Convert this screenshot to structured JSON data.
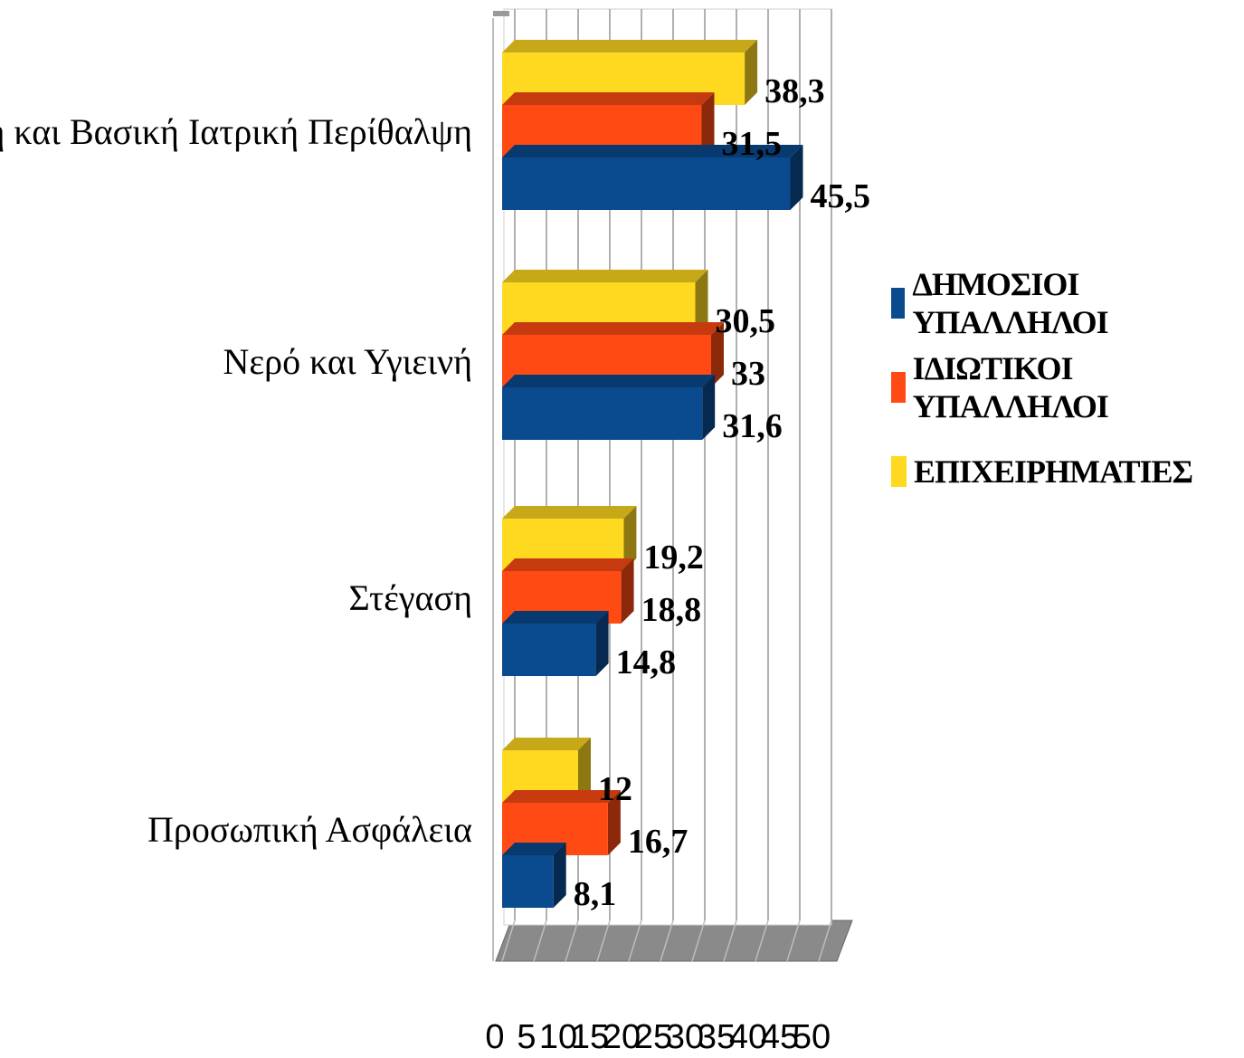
{
  "chart_data": {
    "type": "bar",
    "orientation": "horizontal",
    "categories": [
      "Διατροφή και Βασική Ιατρική Περίθαλψη",
      "Νερό και Υγιεινή",
      "Στέγαση",
      "Προσωπική Ασφάλεια"
    ],
    "series": [
      {
        "name": "ΔΗΜΟΣΙΟΙ ΥΠΑΛΛΗΛΟΙ",
        "color": "#0a4a8f",
        "values": [
          45.5,
          31.6,
          14.8,
          8.1
        ],
        "labels": [
          "45,5",
          "31,6",
          "14,8",
          "8,1"
        ]
      },
      {
        "name": "ΙΔΙΩΤΙΚΟΙ ΥΠΑΛΛΗΛΟΙ",
        "color": "#ff4a14",
        "values": [
          31.5,
          33,
          18.8,
          16.7
        ],
        "labels": [
          "31,5",
          "33",
          "18,8",
          "16,7"
        ]
      },
      {
        "name": "ΕΠΙΧΕΙΡΗΜΑΤΙΕΣ",
        "color": "#ffd820",
        "values": [
          38.3,
          30.5,
          19.2,
          12
        ],
        "labels": [
          "38,3",
          "30,5",
          "19,2",
          "12"
        ]
      }
    ],
    "xlim": [
      0,
      50
    ],
    "xticks": [
      "0",
      "5",
      "10",
      "15",
      "20",
      "25",
      "30",
      "35",
      "40",
      "45",
      "50"
    ],
    "grid": true,
    "style": "3d",
    "legend_position": "right"
  }
}
